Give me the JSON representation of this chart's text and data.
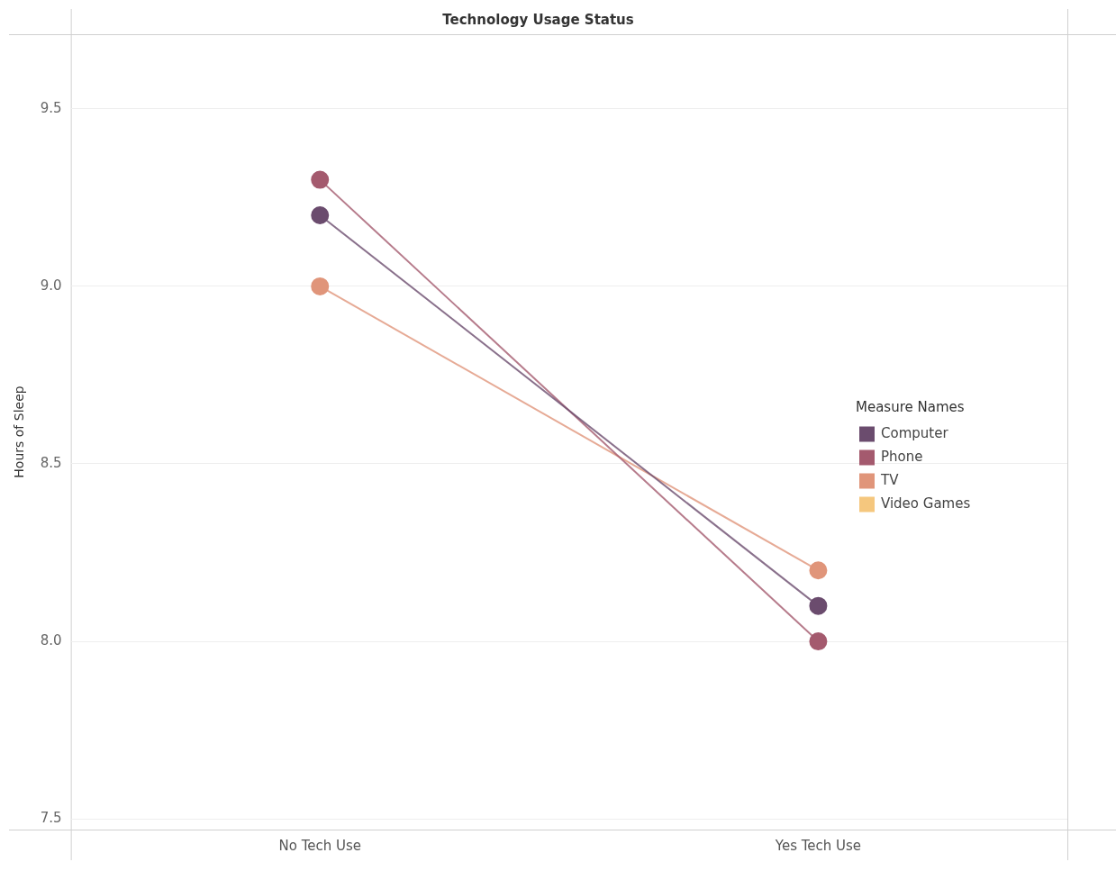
{
  "chart_data": {
    "type": "line",
    "title": "Technology Usage Status",
    "ylabel": "Hours of Sleep",
    "legend_title": "Measure Names",
    "categories": [
      "No Tech Use",
      "Yes Tech Use"
    ],
    "series": [
      {
        "name": "Computer",
        "color": "#6b4c6e",
        "values": [
          9.2,
          8.1
        ]
      },
      {
        "name": "Phone",
        "color": "#a45a6e",
        "values": [
          9.3,
          8.0
        ]
      },
      {
        "name": "TV",
        "color": "#e0957a",
        "values": [
          9.0,
          8.2
        ]
      },
      {
        "name": "Video Games",
        "color": "#f5c77e",
        "values": [
          null,
          null
        ]
      }
    ],
    "ylim": [
      7.47,
      9.71
    ],
    "yticks": [
      7.5,
      {
        "value": 8,
        "label": "8.0"
      },
      8.5,
      {
        "value": 9,
        "label": "9.0"
      },
      9.5
    ],
    "grid": "y",
    "legend": "right",
    "marker": "circle",
    "line_style": "solid"
  }
}
